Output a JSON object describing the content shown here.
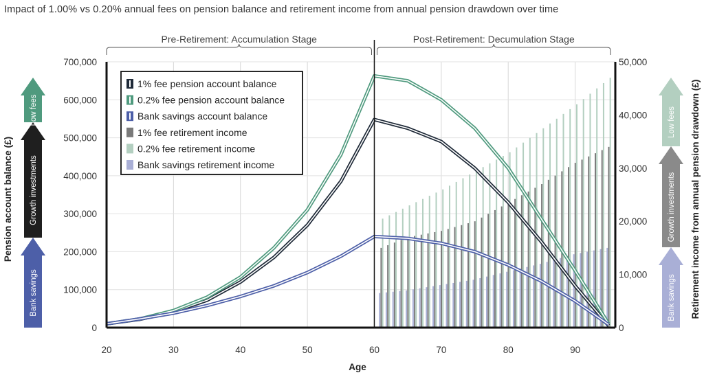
{
  "title": "Impact of 1.00% vs 0.20% annual fees on pension balance and retirement income from annual pension drawdown over time",
  "stages": {
    "pre": "Pre-Retirement: Accumulation Stage",
    "post": "Post-Retirement: Decumulation Stage"
  },
  "arrows_left": [
    "Bank savings",
    "Growth investments",
    "Low fees"
  ],
  "arrows_right": [
    "Bank savings",
    "Growth investments",
    "Low fees"
  ],
  "colors": {
    "fee1_line": "#1f2a38",
    "fee02_line": "#4f9a7e",
    "bank_line": "#4d5fa8",
    "fee1_bar": "#7a7a7a",
    "fee02_bar": "#b3cfc0",
    "bank_bar": "#a9afd6",
    "arrow_bank_left": "#4d5fa8",
    "arrow_growth_left": "#1f1f1f",
    "arrow_low_left": "#4f9a7e",
    "arrow_bank_right": "#a9afd6",
    "arrow_growth_right": "#8a8a8a",
    "arrow_low_right": "#b3cfc0"
  },
  "chart_data": {
    "type": "line",
    "xlabel": "Age",
    "ylabel": "Pension account balance (£)",
    "y2label": "Retirement income from annual pension drawdown (£)",
    "xlim": [
      20,
      96
    ],
    "ylim": [
      0,
      700000
    ],
    "y2lim": [
      0,
      50000
    ],
    "xticks": [
      20,
      30,
      40,
      50,
      60,
      70,
      80,
      90
    ],
    "yticks": [
      0,
      100000,
      200000,
      300000,
      400000,
      500000,
      600000,
      700000
    ],
    "yticklabels": [
      "0",
      "100,000",
      "200,000",
      "300,000",
      "400,000",
      "500,000",
      "600,000",
      "700,000"
    ],
    "y2ticks": [
      0,
      10000,
      20000,
      30000,
      40000,
      50000
    ],
    "y2ticklabels": [
      "0",
      "10,000",
      "20,000",
      "30,000",
      "40,000",
      "50,000"
    ],
    "retirement_age": 60,
    "legend_position": "top-left",
    "series": [
      {
        "name": "1% fee pension account balance",
        "kind": "line",
        "x": [
          20,
          25,
          30,
          35,
          40,
          45,
          50,
          55,
          60,
          65,
          70,
          75,
          80,
          85,
          90,
          95
        ],
        "values": [
          10000,
          22000,
          42000,
          72000,
          120000,
          185000,
          270000,
          385000,
          548000,
          525000,
          490000,
          420000,
          330000,
          225000,
          110000,
          5000
        ]
      },
      {
        "name": "0.2% fee pension account balance",
        "kind": "line",
        "x": [
          20,
          25,
          30,
          35,
          40,
          45,
          50,
          55,
          60,
          65,
          70,
          75,
          80,
          85,
          90,
          95
        ],
        "values": [
          10000,
          23000,
          45000,
          80000,
          133000,
          210000,
          310000,
          455000,
          663000,
          650000,
          600000,
          525000,
          420000,
          285000,
          150000,
          10000
        ]
      },
      {
        "name": "Bank savings account balance",
        "kind": "line",
        "x": [
          20,
          25,
          30,
          35,
          40,
          45,
          50,
          55,
          60,
          65,
          70,
          75,
          80,
          85,
          90,
          95
        ],
        "values": [
          10000,
          23000,
          38000,
          58000,
          82000,
          110000,
          145000,
          188000,
          240000,
          235000,
          222000,
          200000,
          165000,
          122000,
          70000,
          8000
        ]
      },
      {
        "name": "1% fee retirement income",
        "kind": "bar",
        "axis": "y2",
        "x": [
          61,
          65,
          70,
          75,
          80,
          85,
          90,
          95
        ],
        "values": [
          15000,
          17000,
          18200,
          20000,
          23500,
          27000,
          31000,
          34000
        ]
      },
      {
        "name": "0.2% fee retirement income",
        "kind": "bar",
        "axis": "y2",
        "x": [
          61,
          65,
          70,
          75,
          80,
          85,
          90,
          95
        ],
        "values": [
          20500,
          23000,
          26000,
          29500,
          33000,
          37500,
          42000,
          47000
        ]
      },
      {
        "name": "Bank savings retirement income",
        "kind": "bar",
        "axis": "y2",
        "x": [
          61,
          65,
          70,
          75,
          80,
          85,
          90,
          95
        ],
        "values": [
          6500,
          7000,
          8000,
          9000,
          10500,
          12000,
          13800,
          15000
        ]
      }
    ]
  }
}
